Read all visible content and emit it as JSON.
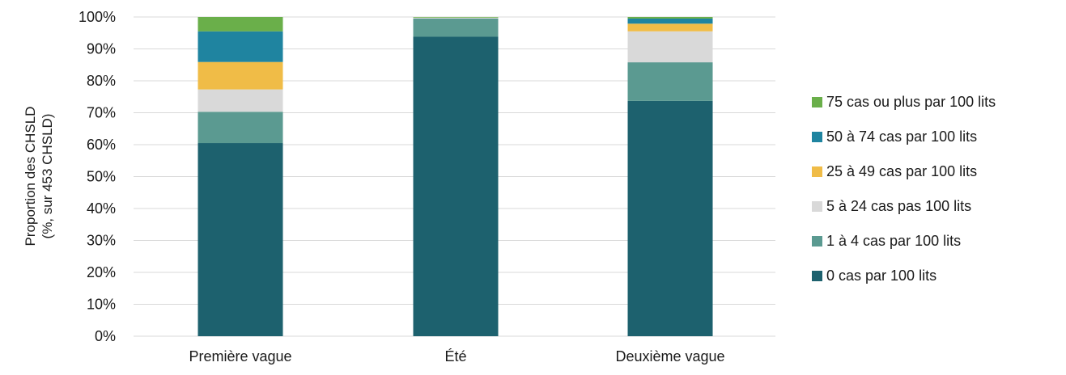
{
  "chart_data": {
    "type": "bar",
    "stacked": true,
    "percent_stacked": true,
    "title": "",
    "xlabel": "",
    "ylabel_lines": [
      "Proportion des CHSLD",
      "(%, sur 453 CHSLD)"
    ],
    "ylim": [
      0,
      100
    ],
    "yticks": [
      0,
      10,
      20,
      30,
      40,
      50,
      60,
      70,
      80,
      90,
      100
    ],
    "ytick_labels": [
      "0%",
      "10%",
      "20%",
      "30%",
      "40%",
      "50%",
      "60%",
      "70%",
      "80%",
      "90%",
      "100%"
    ],
    "grid": true,
    "legend_position": "right",
    "categories": [
      "Première vague",
      "Été",
      "Deuxième vague"
    ],
    "series": [
      {
        "name": "0 cas par 100 lits",
        "color": "#1d616e",
        "values": [
          60.5,
          93.8,
          73.7
        ]
      },
      {
        "name": "1 à 4 cas par 100 lits",
        "color": "#5b9a91",
        "values": [
          9.8,
          5.7,
          12.1
        ]
      },
      {
        "name": "5 à 24 cas pas 100 lits",
        "color": "#d9d9d9",
        "values": [
          7.0,
          0.3,
          9.7
        ]
      },
      {
        "name": "25 à 49 cas par 100 lits",
        "color": "#f0bc47",
        "values": [
          8.6,
          0.0,
          2.4
        ]
      },
      {
        "name": "50 à 74 cas par 100 lits",
        "color": "#1f84a0",
        "values": [
          9.6,
          0.0,
          1.6
        ]
      },
      {
        "name": "75 cas ou plus par 100 lits",
        "color": "#6aaf4a",
        "values": [
          4.5,
          0.2,
          0.5
        ]
      }
    ]
  }
}
